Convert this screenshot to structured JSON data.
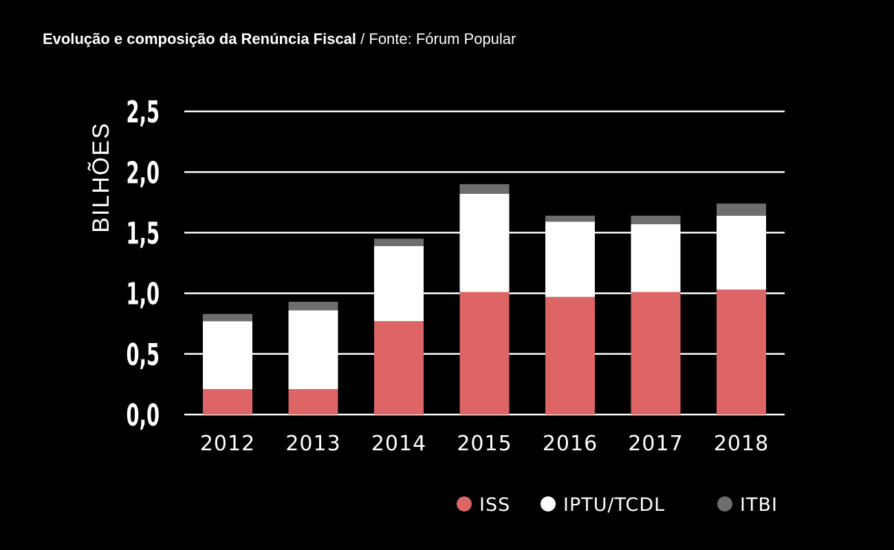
{
  "header": {
    "title_main": "Evolução e composição da Renúncia Fiscal",
    "title_source": " / Fonte: Fórum Popular"
  },
  "chart_data": {
    "type": "bar",
    "stacked": true,
    "ylabel": "BILHÕES",
    "ylim": [
      0,
      2.5
    ],
    "yticks": [
      "0,0",
      "0,5",
      "1,0",
      "1,5",
      "2,0",
      "2,5"
    ],
    "ytick_values": [
      0,
      0.5,
      1.0,
      1.5,
      2.0,
      2.5
    ],
    "grid": true,
    "legend_position": "bottom-right",
    "categories": [
      "2012",
      "2013",
      "2014",
      "2015",
      "2016",
      "2017",
      "2018"
    ],
    "series": [
      {
        "name": "ISS",
        "color": "#dd6566",
        "values": [
          0.21,
          0.21,
          0.77,
          1.01,
          0.97,
          1.01,
          1.03
        ]
      },
      {
        "name": "IPTU/TCDL",
        "color": "#ffffff",
        "values": [
          0.56,
          0.65,
          0.62,
          0.81,
          0.62,
          0.56,
          0.61
        ]
      },
      {
        "name": "ITBI",
        "color": "#6e6e6e",
        "values": [
          0.06,
          0.07,
          0.06,
          0.08,
          0.05,
          0.07,
          0.1
        ]
      }
    ]
  }
}
